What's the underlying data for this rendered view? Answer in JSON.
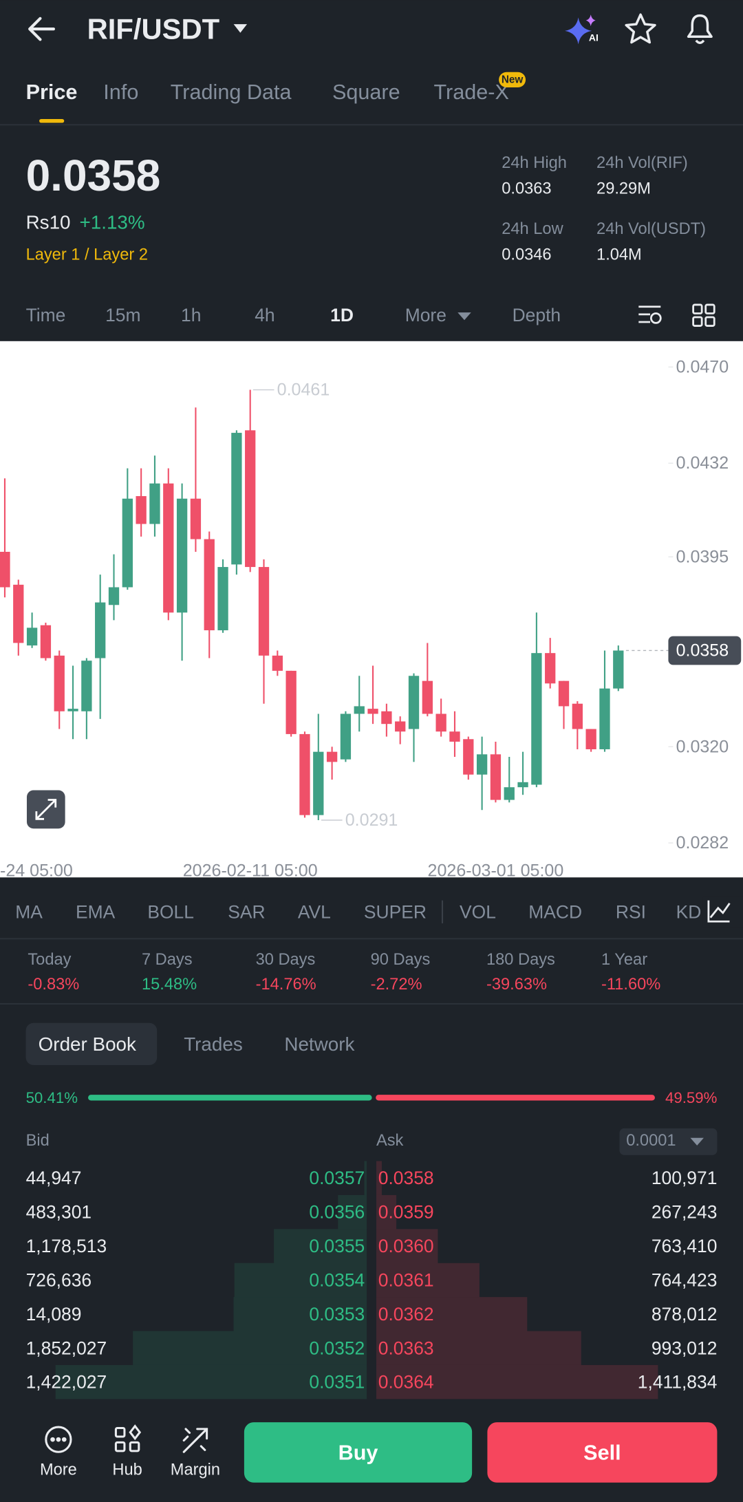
{
  "header": {
    "title": "RIF/USDT",
    "tabs": [
      "Price",
      "Info",
      "Trading Data",
      "Square",
      "Trade-X"
    ],
    "badge": "New"
  },
  "ticker": {
    "price": "0.0358",
    "fiat": "Rs10",
    "change": "+1.13%",
    "tag": "Layer 1 / Layer 2",
    "stats": [
      {
        "label": "24h High",
        "value": "0.0363"
      },
      {
        "label": "24h Vol(RIF)",
        "value": "29.29M"
      },
      {
        "label": "24h Low",
        "value": "0.0346"
      },
      {
        "label": "24h Vol(USDT)",
        "value": "1.04M"
      }
    ]
  },
  "intervals": [
    "Time",
    "15m",
    "1h",
    "4h",
    "1D",
    "More",
    "Depth"
  ],
  "chart_data": {
    "type": "candlestick",
    "up_color": "#40a085",
    "down_color": "#ef5069",
    "categories": [
      "-24 05:00",
      null,
      null,
      null,
      null,
      null,
      null,
      null,
      null,
      null,
      null,
      null,
      null,
      null,
      null,
      null,
      null,
      null,
      "2026-02-11 05:00",
      null,
      null,
      null,
      null,
      null,
      null,
      null,
      null,
      null,
      null,
      null,
      null,
      null,
      null,
      null,
      null,
      null,
      "2026-03-01 05:00",
      null,
      null,
      null,
      null,
      null,
      null,
      null,
      null,
      null
    ],
    "open": [
      0.0397,
      0.0384,
      0.036,
      0.0368,
      0.0356,
      0.0334,
      0.0334,
      0.0355,
      0.0376,
      0.0383,
      0.0419,
      0.0408,
      0.0424,
      0.0373,
      0.0418,
      0.0402,
      0.0366,
      0.0392,
      0.0445,
      0.0391,
      0.0356,
      0.035,
      0.0325,
      0.0293,
      0.0318,
      0.0315,
      0.0333,
      0.0335,
      0.0334,
      0.033,
      0.0327,
      0.0346,
      0.0333,
      0.0326,
      0.0323,
      0.0309,
      0.0317,
      0.0299,
      0.0304,
      0.0305,
      0.0357,
      0.0346,
      0.0337,
      0.0327,
      0.0319,
      0.0343
    ],
    "high": [
      0.0426,
      0.0386,
      0.0373,
      0.0369,
      0.0358,
      0.0352,
      0.0355,
      0.0388,
      0.0396,
      0.043,
      0.043,
      0.0435,
      0.043,
      0.0424,
      0.0454,
      0.0405,
      0.0394,
      0.0445,
      0.0461,
      0.0394,
      0.0358,
      0.035,
      0.0326,
      0.0333,
      0.032,
      0.0334,
      0.0348,
      0.0352,
      0.0337,
      0.0332,
      0.0349,
      0.0361,
      0.0339,
      0.0334,
      0.0324,
      0.0324,
      0.0322,
      0.0316,
      0.0318,
      0.0373,
      0.0363,
      0.0346,
      0.0338,
      0.0327,
      0.0358,
      0.036
    ],
    "low": [
      0.0379,
      0.0356,
      0.0359,
      0.0354,
      0.0327,
      0.0323,
      0.0323,
      0.0331,
      0.037,
      0.0382,
      0.0403,
      0.0403,
      0.037,
      0.0354,
      0.0397,
      0.0355,
      0.0365,
      0.0388,
      0.0389,
      0.0337,
      0.0348,
      0.0324,
      0.0292,
      0.0291,
      0.0307,
      0.0314,
      0.0326,
      0.0329,
      0.0324,
      0.0321,
      0.0314,
      0.0332,
      0.0324,
      0.0316,
      0.0307,
      0.0295,
      0.0298,
      0.0298,
      0.0301,
      0.0304,
      0.0343,
      0.0327,
      0.0319,
      0.0318,
      0.0318,
      0.0342
    ],
    "close": [
      0.0383,
      0.0361,
      0.0367,
      0.0355,
      0.0334,
      0.0335,
      0.0354,
      0.0377,
      0.0383,
      0.0418,
      0.0408,
      0.0424,
      0.0373,
      0.0418,
      0.0402,
      0.0366,
      0.0391,
      0.0444,
      0.0391,
      0.0356,
      0.035,
      0.0325,
      0.0293,
      0.0318,
      0.0314,
      0.0333,
      0.0336,
      0.0333,
      0.0329,
      0.0326,
      0.0348,
      0.0333,
      0.0326,
      0.0322,
      0.0309,
      0.0317,
      0.0299,
      0.0304,
      0.0306,
      0.0357,
      0.0345,
      0.0336,
      0.0327,
      0.0319,
      0.0343,
      0.0358
    ],
    "ylim": [
      0.0282,
      0.047
    ],
    "yticks": [
      {
        "value": 0.047,
        "label": "0.0470"
      },
      {
        "value": 0.0432,
        "label": "0.0432"
      },
      {
        "value": 0.0395,
        "label": "0.0395"
      },
      {
        "value": 0.032,
        "label": "0.0320"
      },
      {
        "value": 0.0282,
        "label": "0.0282"
      }
    ],
    "high_label": {
      "value": 0.0461,
      "label": "0.0461"
    },
    "low_label": {
      "value": 0.0291,
      "label": "0.0291"
    },
    "last_price": {
      "value": 0.0358,
      "label": "0.0358"
    }
  },
  "indicators": [
    "MA",
    "EMA",
    "BOLL",
    "SAR",
    "AVL",
    "SUPER",
    "VOL",
    "MACD",
    "RSI",
    "KD"
  ],
  "performance": [
    {
      "label": "Today",
      "value": "-0.83%"
    },
    {
      "label": "7 Days",
      "value": "15.48%"
    },
    {
      "label": "30 Days",
      "value": "-14.76%"
    },
    {
      "label": "90 Days",
      "value": "-2.72%"
    },
    {
      "label": "180 Days",
      "value": "-39.63%"
    },
    {
      "label": "1 Year",
      "value": "-11.60%"
    }
  ],
  "order_book": {
    "tabs": [
      "Order Book",
      "Trades",
      "Network"
    ],
    "bid_ratio": "50.41%",
    "ask_ratio": "49.59%",
    "bid_label": "Bid",
    "ask_label": "Ask",
    "precision": "0.0001",
    "bids": [
      [
        "44,947",
        "0.0357"
      ],
      [
        "483,301",
        "0.0356"
      ],
      [
        "1,178,513",
        "0.0355"
      ],
      [
        "726,636",
        "0.0354"
      ],
      [
        "14,089",
        "0.0353"
      ],
      [
        "1,852,027",
        "0.0352"
      ],
      [
        "1,422,027",
        "0.0351"
      ]
    ],
    "asks": [
      [
        "0.0358",
        "100,971"
      ],
      [
        "0.0359",
        "267,243"
      ],
      [
        "0.0360",
        "763,410"
      ],
      [
        "0.0361",
        "764,423"
      ],
      [
        "0.0362",
        "878,012"
      ],
      [
        "0.0363",
        "993,012"
      ],
      [
        "0.0364",
        "1,411,834"
      ]
    ]
  },
  "bottom": {
    "nav": [
      "More",
      "Hub",
      "Margin"
    ],
    "buy": "Buy",
    "sell": "Sell"
  }
}
